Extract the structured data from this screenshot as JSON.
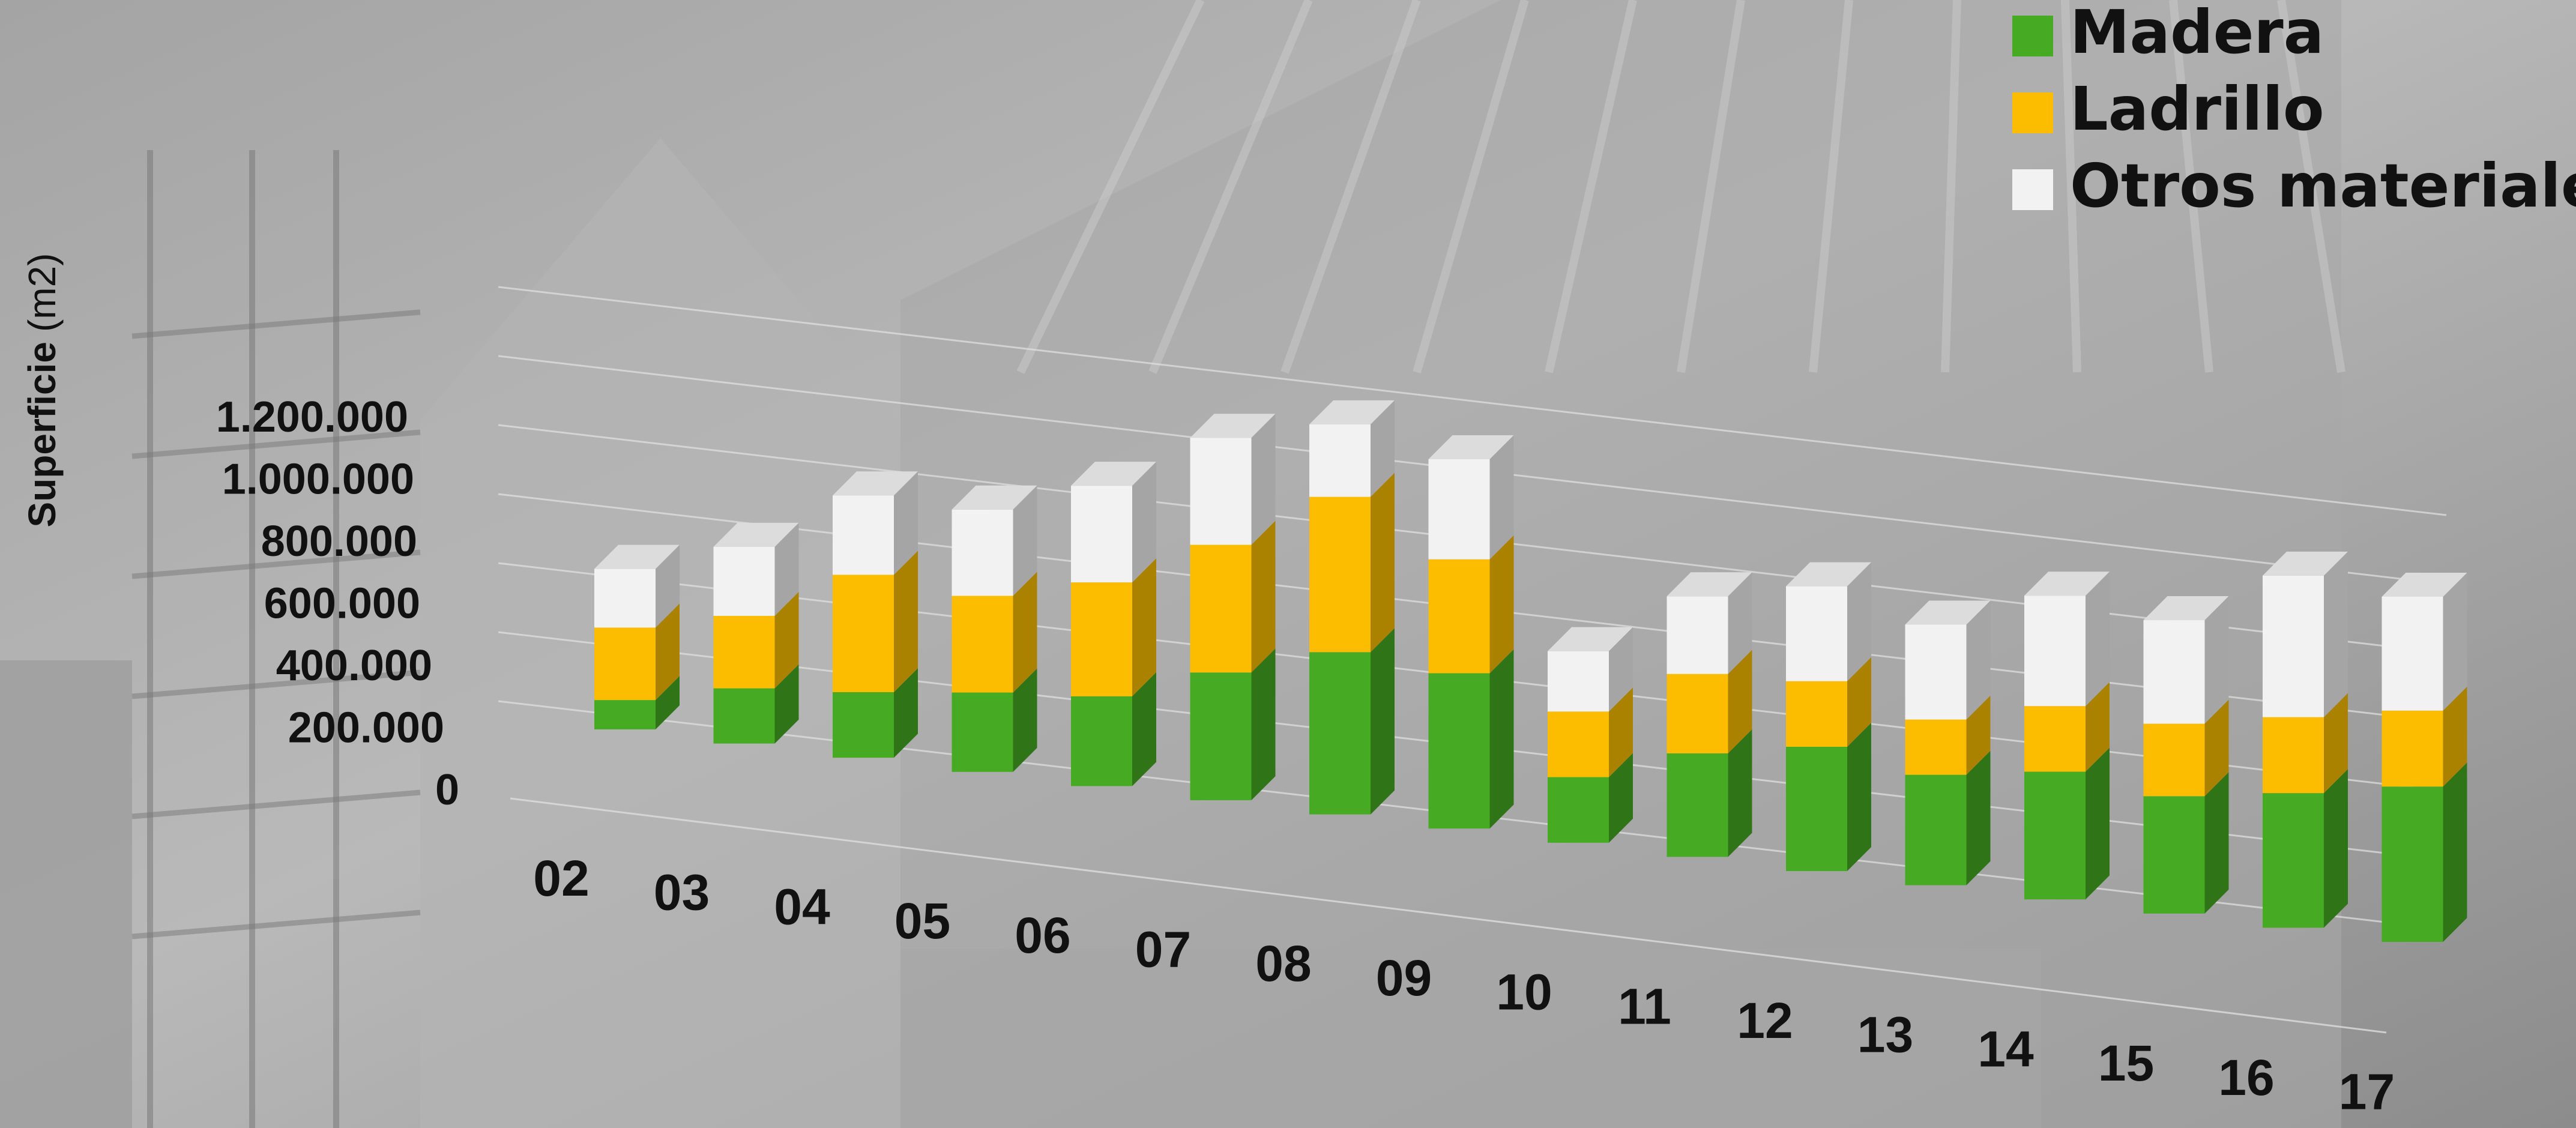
{
  "chart_data": {
    "type": "bar",
    "stacked": true,
    "three_d": true,
    "categories": [
      "02",
      "03",
      "04",
      "05",
      "06",
      "07",
      "08",
      "09",
      "10",
      "11",
      "12",
      "13",
      "14",
      "15",
      "16",
      "17"
    ],
    "series": [
      {
        "name": "Madera",
        "color": "#46ab23",
        "values": [
          85000,
          160000,
          190000,
          230000,
          260000,
          370000,
          470000,
          450000,
          190000,
          300000,
          360000,
          320000,
          370000,
          340000,
          390000,
          450000
        ]
      },
      {
        "name": "Ladrillo",
        "color": "#fcbd00",
        "values": [
          210000,
          210000,
          340000,
          280000,
          330000,
          370000,
          450000,
          330000,
          190000,
          230000,
          190000,
          160000,
          190000,
          210000,
          220000,
          220000
        ]
      },
      {
        "name": "Otros materiales",
        "color": "#f2f2f2",
        "values": [
          170000,
          200000,
          230000,
          250000,
          280000,
          310000,
          210000,
          290000,
          175000,
          225000,
          275000,
          275000,
          320000,
          300000,
          410000,
          330000
        ]
      }
    ],
    "ylabel": "Superficie",
    "ylabel_unit": "(m2)",
    "ylim": [
      0,
      1200000
    ],
    "yticks": [
      "0",
      "200.000",
      "400.000",
      "600.000",
      "800.000",
      "1.000.000",
      "1.200.000"
    ],
    "legend_position": "top-right",
    "grid": true,
    "background": "photo of house under construction (grayscale)"
  }
}
